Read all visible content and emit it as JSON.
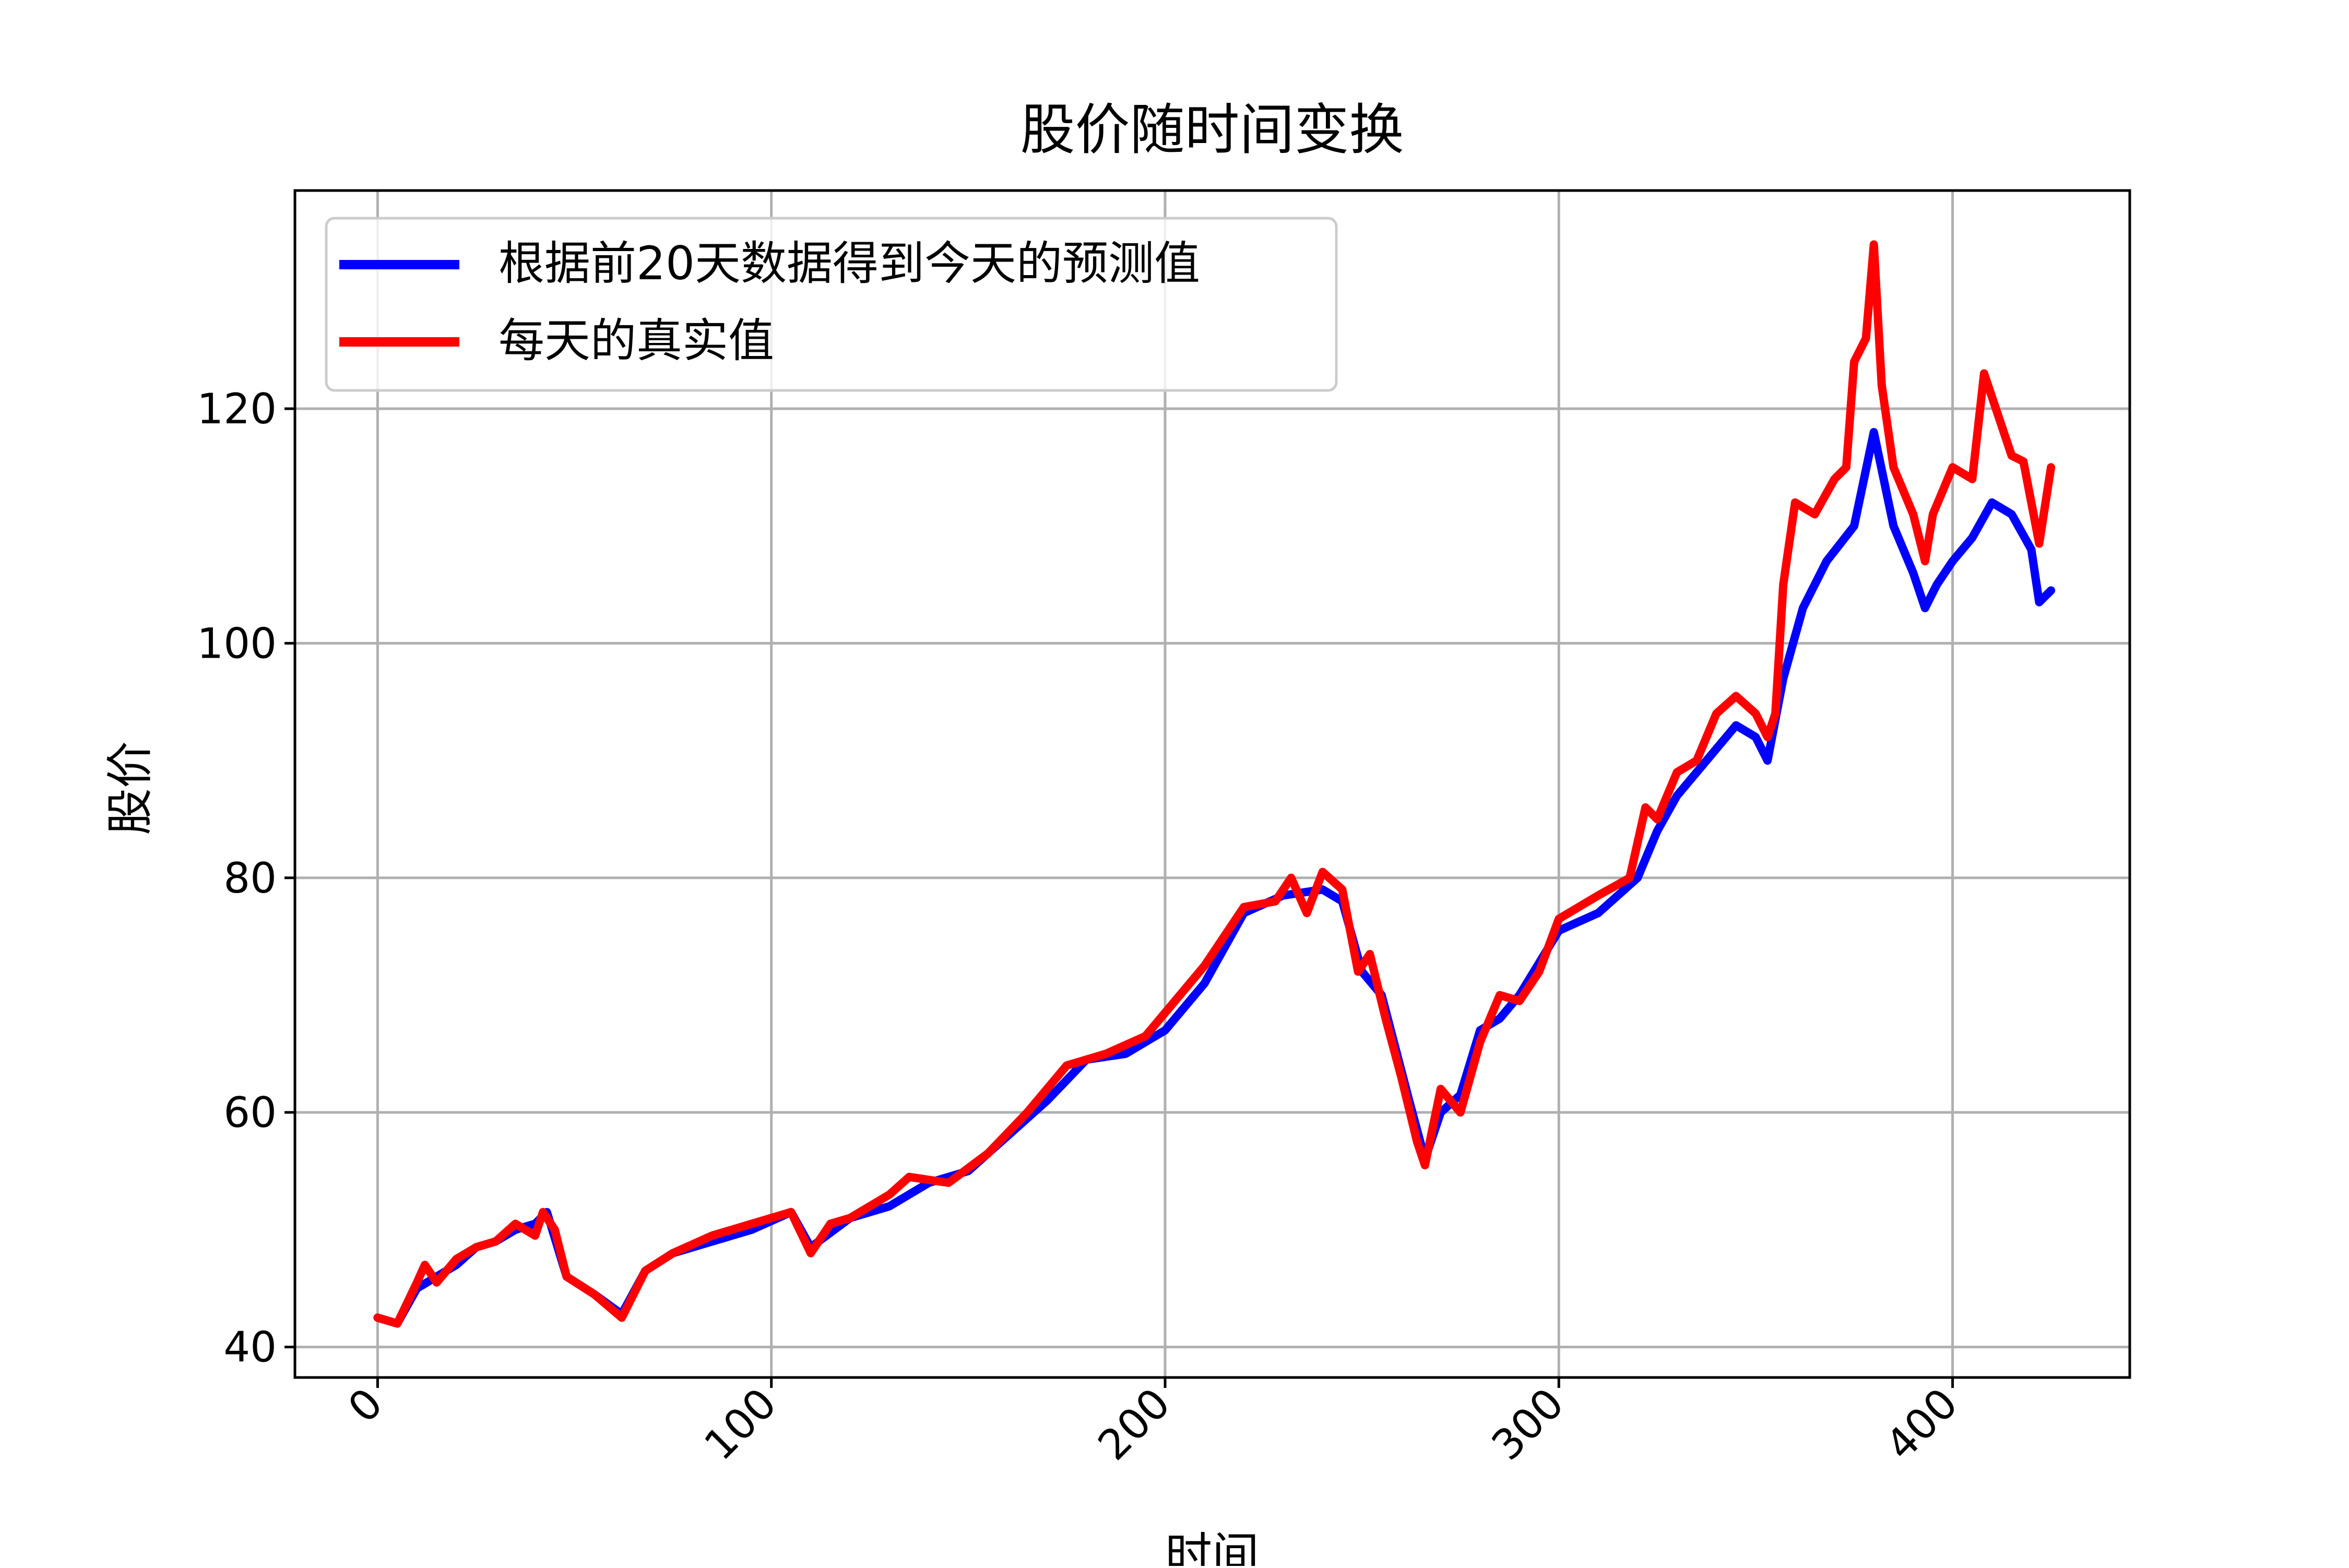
{
  "chart_data": {
    "type": "line",
    "title": "股价随时间变换",
    "xlabel": "时间",
    "ylabel": "股价",
    "xlim": [
      -21,
      445
    ],
    "ylim": [
      37.4,
      138.6
    ],
    "xticks": [
      0,
      100,
      200,
      300,
      400
    ],
    "xtick_labels": [
      "0",
      "100",
      "200",
      "300",
      "400"
    ],
    "yticks": [
      40,
      60,
      80,
      100,
      120
    ],
    "ytick_labels": [
      "40",
      "60",
      "80",
      "100",
      "120"
    ],
    "grid": true,
    "legend_position": "top-left",
    "series": [
      {
        "name": "根据前20天数据得到今天的预测值",
        "color": "#0000ff",
        "points": [
          [
            0,
            42.5
          ],
          [
            5,
            42.0
          ],
          [
            10,
            45.0
          ],
          [
            15,
            46.0
          ],
          [
            20,
            47.0
          ],
          [
            25,
            48.5
          ],
          [
            30,
            49.0
          ],
          [
            35,
            50.0
          ],
          [
            40,
            50.5
          ],
          [
            43,
            51.5
          ],
          [
            48,
            46.0
          ],
          [
            55,
            44.5
          ],
          [
            62,
            42.8
          ],
          [
            68,
            46.5
          ],
          [
            75,
            48.0
          ],
          [
            85,
            49.0
          ],
          [
            95,
            50.0
          ],
          [
            105,
            51.5
          ],
          [
            110,
            48.5
          ],
          [
            120,
            51.0
          ],
          [
            130,
            52.0
          ],
          [
            140,
            54.0
          ],
          [
            150,
            55.0
          ],
          [
            160,
            58.0
          ],
          [
            170,
            61.0
          ],
          [
            180,
            64.5
          ],
          [
            190,
            65.0
          ],
          [
            200,
            67.0
          ],
          [
            210,
            71.0
          ],
          [
            220,
            77.0
          ],
          [
            230,
            78.5
          ],
          [
            240,
            79.0
          ],
          [
            245,
            78.0
          ],
          [
            250,
            72.0
          ],
          [
            255,
            70.0
          ],
          [
            262,
            61.0
          ],
          [
            266,
            56.0
          ],
          [
            270,
            60.0
          ],
          [
            275,
            61.5
          ],
          [
            280,
            67.0
          ],
          [
            285,
            68.0
          ],
          [
            290,
            70.0
          ],
          [
            300,
            75.5
          ],
          [
            310,
            77.0
          ],
          [
            320,
            80.0
          ],
          [
            325,
            84.0
          ],
          [
            330,
            87.0
          ],
          [
            340,
            91.0
          ],
          [
            345,
            93.0
          ],
          [
            350,
            92.0
          ],
          [
            353,
            90.0
          ],
          [
            357,
            97.0
          ],
          [
            362,
            103.0
          ],
          [
            368,
            107.0
          ],
          [
            375,
            110.0
          ],
          [
            380,
            118.0
          ],
          [
            385,
            110.0
          ],
          [
            390,
            106.0
          ],
          [
            393,
            103.0
          ],
          [
            396,
            105.0
          ],
          [
            400,
            107.0
          ],
          [
            405,
            109.0
          ],
          [
            410,
            112.0
          ],
          [
            415,
            111.0
          ],
          [
            420,
            108.0
          ],
          [
            422,
            103.5
          ],
          [
            425,
            104.5
          ]
        ]
      },
      {
        "name": "每天的真实值",
        "color": "#ff0000",
        "points": [
          [
            0,
            42.5
          ],
          [
            5,
            42.0
          ],
          [
            10,
            45.5
          ],
          [
            12,
            47.0
          ],
          [
            15,
            45.5
          ],
          [
            20,
            47.5
          ],
          [
            25,
            48.5
          ],
          [
            30,
            49.0
          ],
          [
            35,
            50.5
          ],
          [
            40,
            49.5
          ],
          [
            42,
            51.5
          ],
          [
            45,
            50.0
          ],
          [
            48,
            46.0
          ],
          [
            55,
            44.5
          ],
          [
            62,
            42.5
          ],
          [
            68,
            46.5
          ],
          [
            75,
            48.0
          ],
          [
            85,
            49.5
          ],
          [
            95,
            50.5
          ],
          [
            105,
            51.5
          ],
          [
            110,
            48.0
          ],
          [
            115,
            50.5
          ],
          [
            120,
            51.0
          ],
          [
            130,
            53.0
          ],
          [
            135,
            54.5
          ],
          [
            145,
            54.0
          ],
          [
            155,
            56.5
          ],
          [
            165,
            60.0
          ],
          [
            175,
            64.0
          ],
          [
            185,
            65.0
          ],
          [
            195,
            66.5
          ],
          [
            200,
            68.5
          ],
          [
            210,
            72.5
          ],
          [
            220,
            77.5
          ],
          [
            228,
            78.0
          ],
          [
            232,
            80.0
          ],
          [
            236,
            77.0
          ],
          [
            240,
            80.5
          ],
          [
            245,
            79.0
          ],
          [
            249,
            72.0
          ],
          [
            252,
            73.5
          ],
          [
            256,
            68.0
          ],
          [
            260,
            63.0
          ],
          [
            264,
            57.5
          ],
          [
            266,
            55.5
          ],
          [
            270,
            62.0
          ],
          [
            275,
            60.0
          ],
          [
            280,
            66.0
          ],
          [
            285,
            70.0
          ],
          [
            290,
            69.5
          ],
          [
            295,
            72.0
          ],
          [
            300,
            76.5
          ],
          [
            310,
            78.5
          ],
          [
            318,
            80.0
          ],
          [
            322,
            86.0
          ],
          [
            325,
            85.0
          ],
          [
            330,
            89.0
          ],
          [
            335,
            90.0
          ],
          [
            340,
            94.0
          ],
          [
            345,
            95.5
          ],
          [
            350,
            94.0
          ],
          [
            353,
            92.0
          ],
          [
            355,
            94.0
          ],
          [
            357,
            105.0
          ],
          [
            360,
            112.0
          ],
          [
            365,
            111.0
          ],
          [
            370,
            114.0
          ],
          [
            373,
            115.0
          ],
          [
            375,
            124.0
          ],
          [
            378,
            126.0
          ],
          [
            380,
            134.0
          ],
          [
            382,
            122.0
          ],
          [
            385,
            115.0
          ],
          [
            390,
            111.0
          ],
          [
            393,
            107.0
          ],
          [
            395,
            111.0
          ],
          [
            400,
            115.0
          ],
          [
            405,
            114.0
          ],
          [
            408,
            123.0
          ],
          [
            412,
            119.0
          ],
          [
            415,
            116.0
          ],
          [
            418,
            115.5
          ],
          [
            420,
            112.0
          ],
          [
            422,
            108.5
          ],
          [
            425,
            115.0
          ]
        ]
      }
    ]
  }
}
